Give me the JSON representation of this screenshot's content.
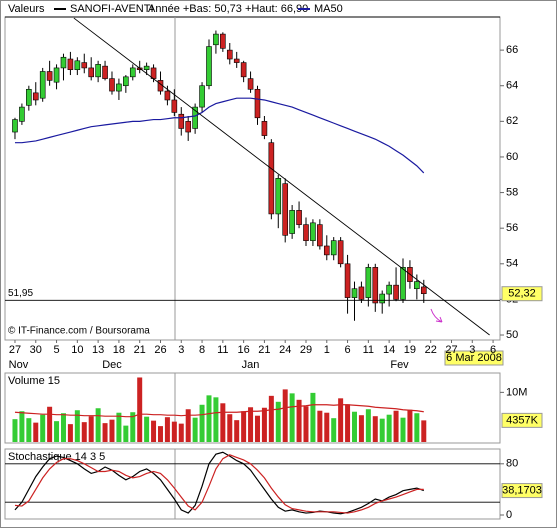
{
  "chart_data": [
    {
      "type": "candlestick",
      "label": "Valeurs",
      "subtitle": "Année +Bas: 50,73 +Haut: 66,90",
      "up_color": "#33cc33",
      "down_color": "#cc2222",
      "series": [
        {
          "name": "SANOFI-AVENTI",
          "color": "#000000",
          "open": [
            61.4,
            62.0,
            62.9,
            63.6,
            63.3,
            64.8,
            64.2,
            65.0,
            65.5,
            64.9,
            65.3,
            65.0,
            64.5,
            65.1,
            64.4,
            63.7,
            64.0,
            64.5,
            65.0,
            64.9,
            65.0,
            64.3,
            63.7,
            63.2,
            62.4,
            62.0,
            61.6,
            62.8,
            64.0,
            66.3,
            66.9,
            66.0,
            65.5,
            65.3,
            64.4,
            63.8,
            62.0,
            60.8,
            56.8,
            58.5,
            55.7,
            57.0,
            56.2,
            55.3,
            56.2,
            55.0,
            54.5,
            55.3,
            54.0,
            52.1,
            52.7,
            52.1,
            53.8,
            51.8,
            52.3,
            52.8,
            52.0,
            53.8,
            52.6,
            52.7
          ],
          "high": [
            62.2,
            63.0,
            64.0,
            64.2,
            65.0,
            65.4,
            65.2,
            65.8,
            65.9,
            65.6,
            65.8,
            65.6,
            65.4,
            65.4,
            64.8,
            64.4,
            64.6,
            65.2,
            65.4,
            65.3,
            65.2,
            64.8,
            64.0,
            63.8,
            62.8,
            62.3,
            63.0,
            64.2,
            66.6,
            67.1,
            67.0,
            66.4,
            65.9,
            65.4,
            64.8,
            64.0,
            62.3,
            61.0,
            59.0,
            58.8,
            57.3,
            57.5,
            56.6,
            56.5,
            56.5,
            55.6,
            55.5,
            55.5,
            54.5,
            53.0,
            53.0,
            54.0,
            54.0,
            52.5,
            53.0,
            53.8,
            54.3,
            54.2,
            53.4,
            53.1
          ],
          "low": [
            61.0,
            61.8,
            62.6,
            62.9,
            63.1,
            64.0,
            63.8,
            64.3,
            64.6,
            64.6,
            64.7,
            64.3,
            64.2,
            64.3,
            63.5,
            63.2,
            63.6,
            64.3,
            64.7,
            64.6,
            64.2,
            63.5,
            62.9,
            62.3,
            61.2,
            60.9,
            61.3,
            62.5,
            63.8,
            65.8,
            65.9,
            65.2,
            65.0,
            64.2,
            63.6,
            61.8,
            61.0,
            56.5,
            56.0,
            55.2,
            55.4,
            56.0,
            55.0,
            55.0,
            54.8,
            54.2,
            54.2,
            53.8,
            51.2,
            50.8,
            51.8,
            51.6,
            51.3,
            51.2,
            51.6,
            51.9,
            51.8,
            52.6,
            52.0,
            51.8
          ],
          "close": [
            62.1,
            62.8,
            63.8,
            63.2,
            64.8,
            64.3,
            65.0,
            65.6,
            64.9,
            65.4,
            65.0,
            64.5,
            65.2,
            64.4,
            63.7,
            64.1,
            64.5,
            65.0,
            64.9,
            65.1,
            64.4,
            63.7,
            63.2,
            62.5,
            61.6,
            61.4,
            62.8,
            64.0,
            66.2,
            66.9,
            66.1,
            65.5,
            65.3,
            64.5,
            63.8,
            62.2,
            61.2,
            56.8,
            58.8,
            55.6,
            57.0,
            56.2,
            55.3,
            56.3,
            55.0,
            54.5,
            55.3,
            54.0,
            52.1,
            52.6,
            52.0,
            53.8,
            51.8,
            52.3,
            52.8,
            52.0,
            53.8,
            53.0,
            53.0,
            52.32
          ]
        },
        {
          "name": "MA50",
          "type": "line",
          "color": "#1a1aa0",
          "values": [
            60.8,
            60.8,
            60.85,
            60.9,
            61.0,
            61.1,
            61.2,
            61.3,
            61.4,
            61.5,
            61.6,
            61.7,
            61.75,
            61.8,
            61.85,
            61.9,
            61.95,
            62.0,
            62.0,
            62.05,
            62.1,
            62.1,
            62.15,
            62.2,
            62.2,
            62.25,
            62.3,
            62.5,
            62.8,
            63.0,
            63.1,
            63.2,
            63.3,
            63.3,
            63.3,
            63.25,
            63.2,
            63.1,
            63.0,
            62.9,
            62.8,
            62.65,
            62.5,
            62.35,
            62.2,
            62.05,
            61.9,
            61.75,
            61.6,
            61.45,
            61.3,
            61.15,
            61.0,
            60.8,
            60.6,
            60.35,
            60.1,
            59.8,
            59.5,
            59.1
          ]
        }
      ],
      "xlim": [
        -1.44,
        70
      ],
      "xticks": [
        {
          "value": 0,
          "label": "27"
        },
        {
          "value": 3,
          "label": "30"
        },
        {
          "value": 6,
          "label": "5"
        },
        {
          "value": 9,
          "label": "10"
        },
        {
          "value": 12,
          "label": "13"
        },
        {
          "value": 15,
          "label": "18"
        },
        {
          "value": 18,
          "label": "21"
        },
        {
          "value": 21,
          "label": "26"
        },
        {
          "value": 24,
          "label": "3"
        },
        {
          "value": 27,
          "label": "8"
        },
        {
          "value": 30,
          "label": "11"
        },
        {
          "value": 33,
          "label": "16"
        },
        {
          "value": 36,
          "label": "21"
        },
        {
          "value": 39,
          "label": "24"
        },
        {
          "value": 42,
          "label": "29"
        },
        {
          "value": 45,
          "label": "1"
        },
        {
          "value": 48,
          "label": "6"
        },
        {
          "value": 51,
          "label": "11"
        },
        {
          "value": 54,
          "label": "14"
        },
        {
          "value": 57,
          "label": "19"
        },
        {
          "value": 60,
          "label": "22"
        },
        {
          "value": 63,
          "label": "27"
        },
        {
          "value": 66,
          "label": "3"
        },
        {
          "value": 69,
          "label": "6"
        }
      ],
      "months": [
        {
          "value": 0.5,
          "label": "Nov"
        },
        {
          "value": 14,
          "label": "Dec"
        },
        {
          "value": 34,
          "label": "Jan"
        },
        {
          "value": 55.5,
          "label": "Fev"
        }
      ],
      "ylim": [
        49.72,
        67.86
      ],
      "yticks": [
        50,
        52,
        54,
        56,
        58,
        60,
        62,
        64,
        66
      ],
      "trendline": {
        "x": [
          8.5,
          68.5
        ],
        "y": [
          67.8,
          50.0
        ]
      },
      "reference_line": {
        "value": 51.95,
        "label": "51,95"
      },
      "last_value": {
        "value": 52.32,
        "label": "52,32"
      },
      "credit": "© IT-Finance.com / Boursorama",
      "date_label": "6 Mar 2008"
    },
    {
      "type": "bar",
      "label": "Volume 15",
      "series": [
        {
          "values": [
            4600000,
            6200000,
            4800000,
            3900000,
            5500000,
            7100000,
            4200000,
            5800000,
            3600000,
            6400000,
            4000000,
            5200000,
            6800000,
            3800000,
            4500000,
            5900000,
            3300000,
            6000000,
            13000000,
            5100000,
            4300000,
            3200000,
            5000000,
            4100000,
            3700000,
            6600000,
            4900000,
            7500000,
            9400000,
            9000000,
            7800000,
            5600000,
            4400000,
            6200000,
            7000000,
            5300000,
            6900000,
            9300000,
            8100000,
            10600000,
            9800000,
            8500000,
            7200000,
            9900000,
            6300000,
            5900000,
            4800000,
            8800000,
            7600000,
            6100000,
            5400000,
            6600000,
            5200000,
            4700000,
            5500000,
            6300000,
            4900000,
            6500000,
            5800000,
            4357000
          ]
        },
        {
          "type": "line",
          "color": "#cc2222",
          "values": [
            6000000,
            5900000,
            5800000,
            5700000,
            5600000,
            5600000,
            5500000,
            5500000,
            5400000,
            5400000,
            5300000,
            5300000,
            5300000,
            5200000,
            5200000,
            5200000,
            5100000,
            5100000,
            5600000,
            5600000,
            5500000,
            5500000,
            5400000,
            5400000,
            5300000,
            5400000,
            5400000,
            5500000,
            5700000,
            5900000,
            6000000,
            6000000,
            6000000,
            6100000,
            6200000,
            6200000,
            6300000,
            6500000,
            6600000,
            6900000,
            7100000,
            7200000,
            7300000,
            7500000,
            7500000,
            7500000,
            7400000,
            7500000,
            7500000,
            7400000,
            7300000,
            7200000,
            7000000,
            6900000,
            6800000,
            6700000,
            6500000,
            6400000,
            6300000,
            6100000
          ]
        }
      ],
      "ylim": [
        0,
        13500000
      ],
      "yticks": [
        {
          "value": 10000000,
          "label": "10M"
        }
      ],
      "last_value": {
        "value": 4357000,
        "label": "4357K"
      }
    },
    {
      "type": "line",
      "label": "Stochastique 14 3 5",
      "series": [
        {
          "color": "#000000",
          "values": [
            8,
            20,
            40,
            60,
            75,
            88,
            92,
            90,
            85,
            80,
            72,
            65,
            68,
            75,
            70,
            62,
            55,
            60,
            68,
            72,
            65,
            55,
            40,
            25,
            8,
            3,
            15,
            45,
            80,
            95,
            98,
            92,
            85,
            80,
            70,
            55,
            40,
            25,
            12,
            6,
            8,
            5,
            3,
            4,
            6,
            5,
            3,
            2,
            4,
            8,
            12,
            18,
            25,
            22,
            28,
            32,
            38,
            40,
            42,
            38.1703
          ]
        },
        {
          "color": "#cc2222",
          "values": [
            15,
            14,
            22,
            40,
            58,
            72,
            82,
            88,
            88,
            85,
            80,
            74,
            68,
            68,
            70,
            68,
            62,
            58,
            60,
            65,
            68,
            65,
            55,
            42,
            28,
            14,
            8,
            20,
            45,
            72,
            88,
            94,
            90,
            86,
            80,
            70,
            58,
            42,
            28,
            16,
            10,
            8,
            6,
            5,
            5,
            5,
            5,
            4,
            3,
            5,
            8,
            12,
            18,
            22,
            25,
            28,
            32,
            36,
            40,
            40
          ]
        }
      ],
      "ylim": [
        0,
        100
      ],
      "yticks": [
        0,
        80
      ],
      "guide_lines": [
        20,
        80
      ],
      "last_value": {
        "value": 38.1703,
        "label": "38,1703"
      }
    }
  ]
}
